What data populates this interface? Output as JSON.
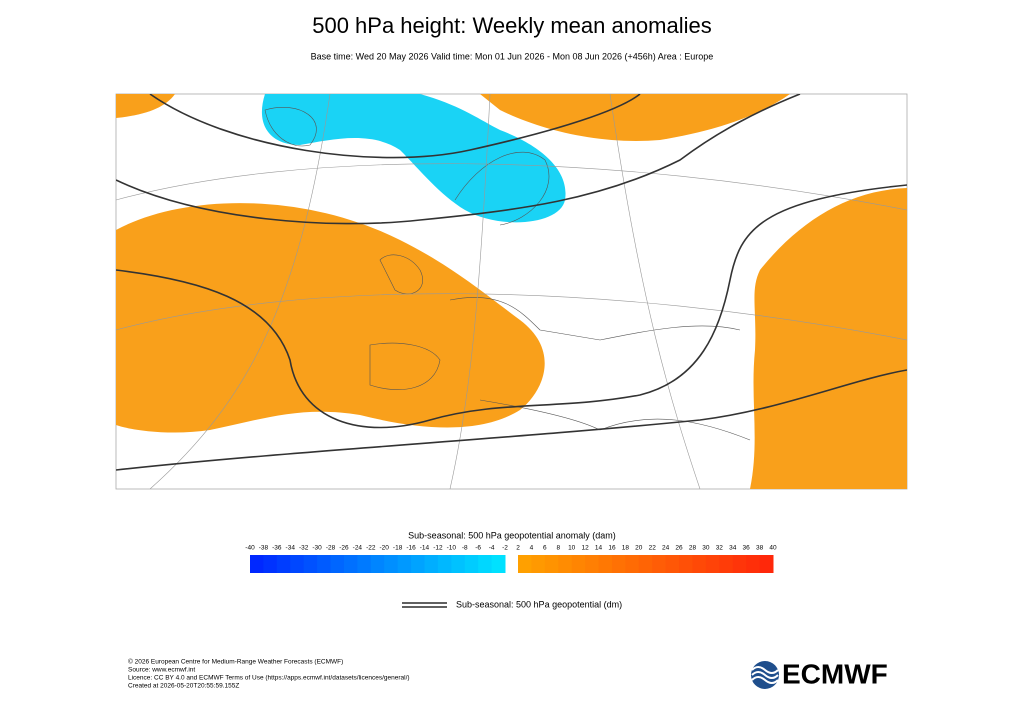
{
  "header": {
    "title": "500 hPa height: Weekly mean anomalies",
    "subtitle": "Base time: Wed 20 May 2026 Valid time: Mon 01 Jun 2026 - Mon 08 Jun 2026 (+456h) Area : Europe"
  },
  "colorbar": {
    "label": "Sub-seasonal: 500 hPa geopotential anomaly (dam)",
    "negative_ticks": [
      -40,
      -38,
      -36,
      -34,
      -32,
      -30,
      -28,
      -26,
      -24,
      -22,
      -20,
      -18,
      -16,
      -14,
      -12,
      -10,
      -8,
      -6,
      -4,
      -2
    ],
    "positive_ticks": [
      2,
      4,
      6,
      8,
      10,
      12,
      14,
      16,
      18,
      20,
      22,
      24,
      26,
      28,
      30,
      32,
      34,
      36,
      38,
      40
    ]
  },
  "legend": {
    "label": "Sub-seasonal: 500 hPa geopotential (dm)"
  },
  "footer": {
    "lines": [
      "© 2026 European Centre for Medium-Range Weather Forecasts (ECMWF)",
      "Source: www.ecmwf.int",
      "Licence: CC BY 4.0 and ECMWF Terms of Use (https://apps.ecmwf.int/datasets/licences/general/)",
      "Created at 2026-05-20T20:55:59.155Z"
    ],
    "logo": "ECMWF"
  }
}
